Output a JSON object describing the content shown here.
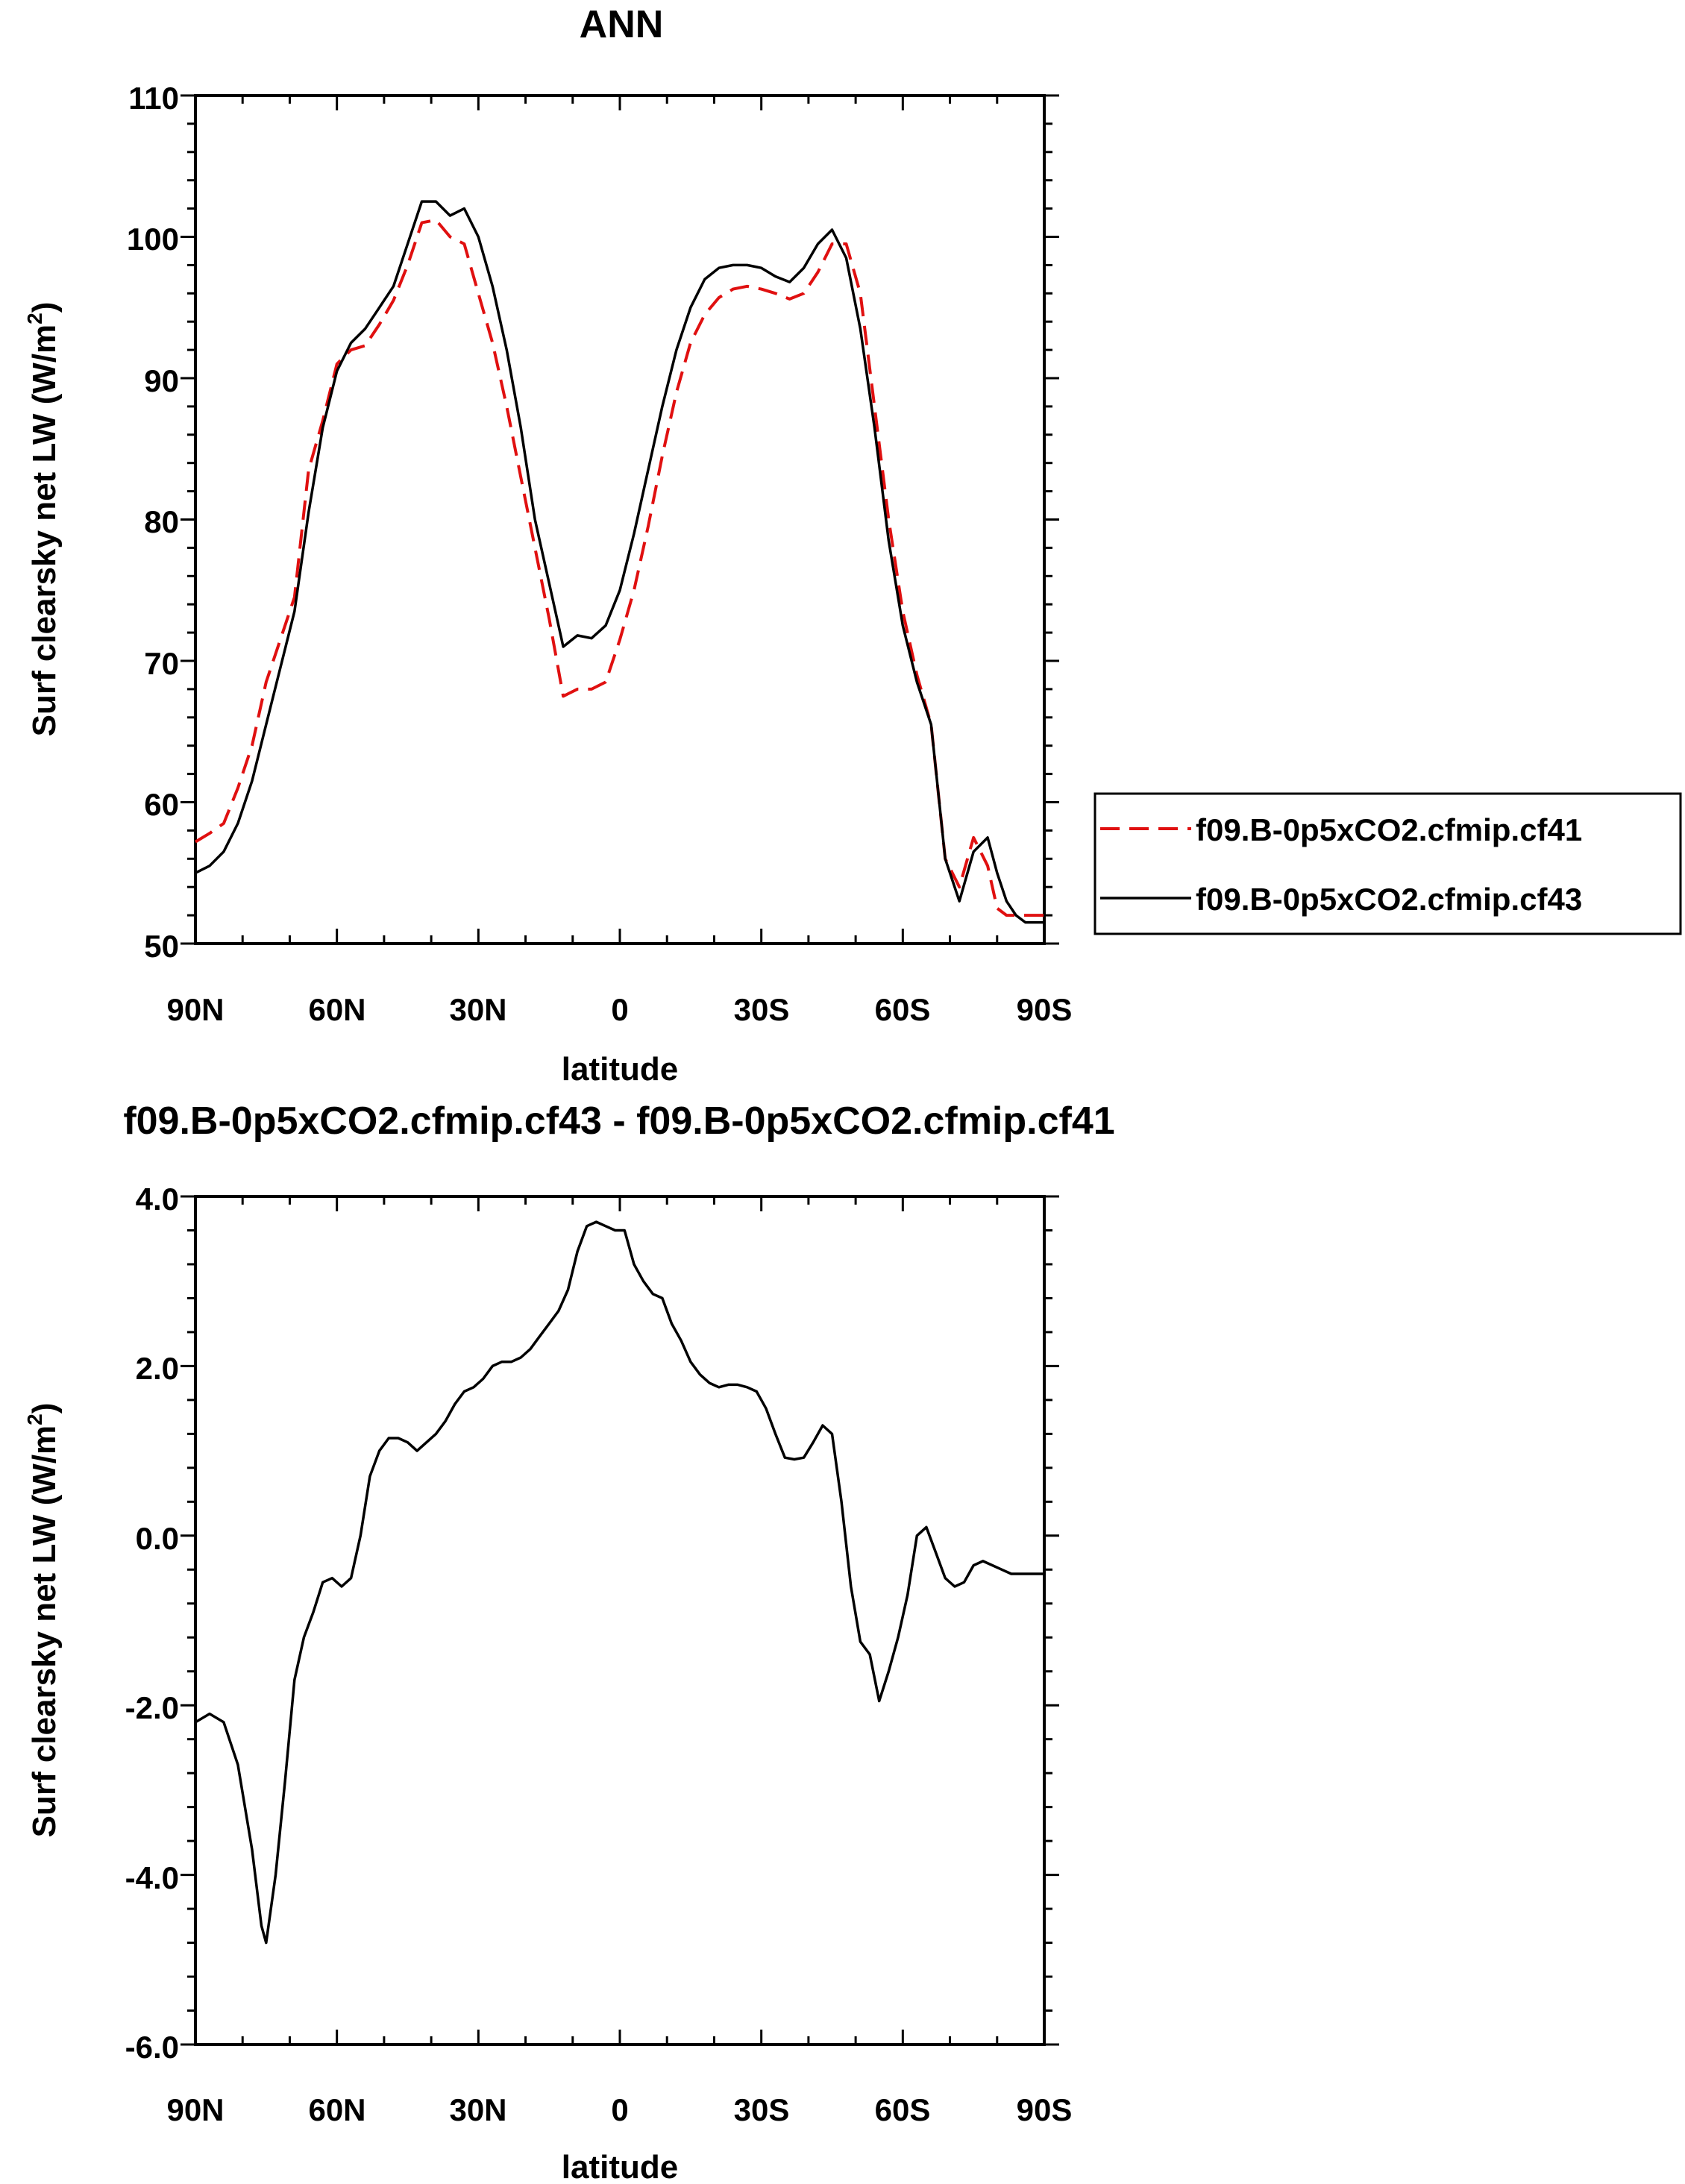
{
  "chart_data": [
    {
      "type": "line",
      "title": "ANN",
      "xlabel": "latitude",
      "ylabel": "Surf clearsky net LW (W/m",
      "ylabel_sup": "2",
      "ylabel_close": ")",
      "xlim": [
        90,
        -90
      ],
      "ylim": [
        50,
        110
      ],
      "xticks": [
        90,
        60,
        30,
        0,
        -30,
        -60,
        -90
      ],
      "xticklabels": [
        "90N",
        "60N",
        "30N",
        "0",
        "30S",
        "60S",
        "90S"
      ],
      "yticks": [
        50,
        60,
        70,
        80,
        90,
        100,
        110
      ],
      "yticklabels": [
        "50",
        "60",
        "70",
        "80",
        "90",
        "100",
        "110"
      ],
      "legend_position": "right",
      "series": [
        {
          "name": "f09.B-0p5xCO2.cfmip.cf41",
          "color": "#e01010",
          "dash": "dashed",
          "x": [
            90,
            87,
            84,
            81,
            78,
            75,
            72,
            69,
            66,
            63,
            60,
            57,
            54,
            51,
            48,
            45,
            42,
            39,
            36,
            33,
            30,
            27,
            24,
            21,
            18,
            15,
            12,
            9,
            6,
            3,
            0,
            -3,
            -6,
            -9,
            -12,
            -15,
            -18,
            -21,
            -24,
            -27,
            -30,
            -33,
            -36,
            -39,
            -42,
            -45,
            -48,
            -51,
            -54,
            -57,
            -60,
            -63,
            -66,
            -69,
            -72,
            -75,
            -78,
            -80,
            -82,
            -84,
            -86,
            -88,
            -90
          ],
          "y": [
            57.2,
            57.8,
            58.5,
            61.0,
            64.0,
            68.5,
            71.5,
            74.5,
            83.5,
            87.0,
            91.0,
            92.0,
            92.3,
            93.8,
            95.5,
            98.0,
            101.0,
            101.2,
            100.0,
            99.5,
            96.0,
            92.5,
            88.0,
            83.0,
            78.0,
            73.0,
            67.5,
            68.0,
            68.0,
            68.5,
            71.5,
            75.0,
            79.5,
            84.5,
            89.0,
            92.5,
            94.5,
            95.7,
            96.3,
            96.5,
            96.3,
            96.0,
            95.6,
            96.0,
            97.5,
            99.5,
            99.5,
            96.0,
            88.0,
            80.0,
            73.5,
            69.0,
            65.5,
            56.0,
            54.0,
            57.5,
            55.5,
            52.5,
            52.0,
            52.0,
            52.0,
            52.0,
            52.0
          ]
        },
        {
          "name": "f09.B-0p5xCO2.cfmip.cf43",
          "color": "#000000",
          "dash": "solid",
          "x": [
            90,
            87,
            84,
            81,
            78,
            75,
            72,
            69,
            66,
            63,
            60,
            57,
            54,
            51,
            48,
            45,
            42,
            39,
            36,
            33,
            30,
            27,
            24,
            21,
            18,
            15,
            12,
            9,
            6,
            3,
            0,
            -3,
            -6,
            -9,
            -12,
            -15,
            -18,
            -21,
            -24,
            -27,
            -30,
            -33,
            -36,
            -39,
            -42,
            -45,
            -48,
            -51,
            -54,
            -57,
            -60,
            -63,
            -66,
            -69,
            -72,
            -75,
            -78,
            -80,
            -82,
            -84,
            -86,
            -88,
            -90
          ],
          "y": [
            55.0,
            55.5,
            56.5,
            58.5,
            61.5,
            65.5,
            69.5,
            73.5,
            80.5,
            86.5,
            90.5,
            92.5,
            93.5,
            95.0,
            96.5,
            99.5,
            102.5,
            102.5,
            101.5,
            102.0,
            100.0,
            96.5,
            92.0,
            86.5,
            80.0,
            75.5,
            71.0,
            71.8,
            71.6,
            72.5,
            75.0,
            79.0,
            83.5,
            88.0,
            92.0,
            95.0,
            97.0,
            97.8,
            98.0,
            98.0,
            97.8,
            97.2,
            96.8,
            97.8,
            99.5,
            100.5,
            98.5,
            93.5,
            86.5,
            78.5,
            72.5,
            68.5,
            65.5,
            56.0,
            53.0,
            56.5,
            57.5,
            55.0,
            53.0,
            52.0,
            51.5,
            51.5,
            51.5
          ]
        }
      ]
    },
    {
      "type": "line",
      "title": "f09.B-0p5xCO2.cfmip.cf43 - f09.B-0p5xCO2.cfmip.cf41",
      "xlabel": "latitude",
      "ylabel": "Surf clearsky net LW (W/m",
      "ylabel_sup": "2",
      "ylabel_close": ")",
      "xlim": [
        90,
        -90
      ],
      "ylim": [
        -6,
        4
      ],
      "xticks": [
        90,
        60,
        30,
        0,
        -30,
        -60,
        -90
      ],
      "xticklabels": [
        "90N",
        "60N",
        "30N",
        "0",
        "30S",
        "60S",
        "90S"
      ],
      "yticks": [
        -6,
        -4,
        -2,
        0,
        2,
        4
      ],
      "yticklabels": [
        "-6.0",
        "-4.0",
        "-2.0",
        "0.0",
        "2.0",
        "4.0"
      ],
      "series": [
        {
          "color": "#000000",
          "dash": "solid",
          "x": [
            90,
            87,
            84,
            81,
            78,
            76,
            75,
            73,
            71,
            69,
            67,
            65,
            63,
            61,
            59,
            57,
            55,
            53,
            51,
            49,
            47,
            45,
            43,
            41,
            39,
            37,
            35,
            33,
            31,
            29,
            27,
            25,
            23,
            21,
            19,
            17,
            15,
            13,
            11,
            9,
            7,
            5,
            3,
            1,
            -1,
            -3,
            -5,
            -7,
            -9,
            -11,
            -13,
            -15,
            -17,
            -19,
            -21,
            -23,
            -25,
            -27,
            -29,
            -31,
            -33,
            -35,
            -37,
            -39,
            -41,
            -43,
            -45,
            -47,
            -49,
            -51,
            -53,
            -55,
            -57,
            -59,
            -61,
            -63,
            -65,
            -67,
            -69,
            -71,
            -73,
            -75,
            -77,
            -79,
            -81,
            -83,
            -85,
            -87,
            -89,
            -90
          ],
          "y": [
            -2.2,
            -2.1,
            -2.2,
            -2.7,
            -3.7,
            -4.6,
            -4.8,
            -4.0,
            -2.9,
            -1.7,
            -1.2,
            -0.9,
            -0.55,
            -0.5,
            -0.6,
            -0.5,
            0.0,
            0.7,
            1.0,
            1.15,
            1.15,
            1.1,
            1.0,
            1.1,
            1.2,
            1.35,
            1.55,
            1.7,
            1.75,
            1.85,
            2.0,
            2.05,
            2.05,
            2.1,
            2.2,
            2.35,
            2.5,
            2.65,
            2.9,
            3.35,
            3.65,
            3.7,
            3.65,
            3.6,
            3.6,
            3.2,
            3.0,
            2.85,
            2.8,
            2.5,
            2.3,
            2.05,
            1.9,
            1.8,
            1.75,
            1.78,
            1.78,
            1.75,
            1.7,
            1.5,
            1.2,
            0.92,
            0.9,
            0.92,
            1.1,
            1.3,
            1.2,
            0.4,
            -0.6,
            -1.25,
            -1.4,
            -1.95,
            -1.6,
            -1.2,
            -0.7,
            0.0,
            0.1,
            -0.2,
            -0.5,
            -0.6,
            -0.55,
            -0.35,
            -0.3,
            -0.35,
            -0.4,
            -0.45,
            -0.45,
            -0.45,
            -0.45,
            -0.45
          ]
        }
      ]
    }
  ]
}
